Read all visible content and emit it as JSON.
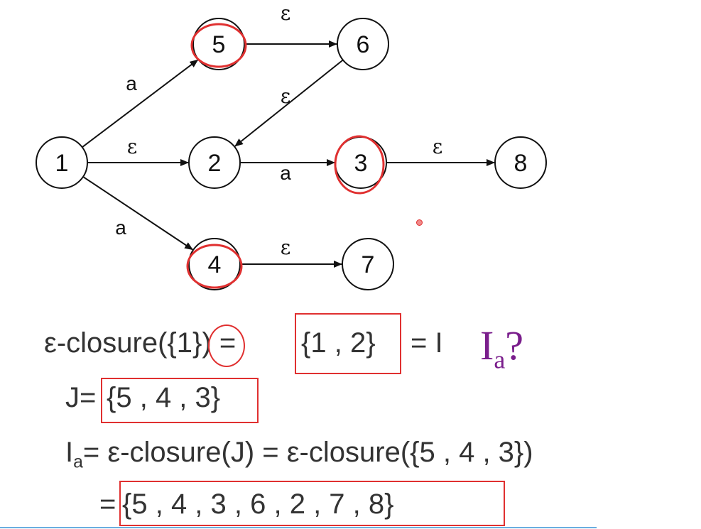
{
  "graph": {
    "nodes": [
      {
        "id": "1",
        "label": "1"
      },
      {
        "id": "2",
        "label": "2"
      },
      {
        "id": "3",
        "label": "3"
      },
      {
        "id": "4",
        "label": "4"
      },
      {
        "id": "5",
        "label": "5"
      },
      {
        "id": "6",
        "label": "6"
      },
      {
        "id": "7",
        "label": "7"
      },
      {
        "id": "8",
        "label": "8"
      }
    ],
    "edges": [
      {
        "from": "1",
        "to": "5",
        "label": "a"
      },
      {
        "from": "1",
        "to": "2",
        "label": "ε"
      },
      {
        "from": "1",
        "to": "4",
        "label": "a"
      },
      {
        "from": "5",
        "to": "6",
        "label": "ε"
      },
      {
        "from": "6",
        "to": "2",
        "label": "ε"
      },
      {
        "from": "2",
        "to": "3",
        "label": "a"
      },
      {
        "from": "3",
        "to": "8",
        "label": "ε"
      },
      {
        "from": "4",
        "to": "7",
        "label": "ε"
      }
    ],
    "highlighted_nodes": [
      "5",
      "3",
      "4"
    ],
    "highlight_color": "#e03030"
  },
  "equations": {
    "line1": {
      "lhs_prefix": "ε-closure(",
      "lhs_arg": "{1}",
      "lhs_suffix": ") =",
      "result": "{1 , 2}",
      "tail": "= I"
    },
    "question": {
      "base": "I",
      "sub": "a",
      "mark": "?"
    },
    "line2": {
      "lhs": "J=",
      "set": "{5 , 4 , 3}"
    },
    "line3": {
      "lhs_base": "I",
      "lhs_sub": "a",
      "rhs": "= ε-closure(J) = ε-closure({5 , 4 , 3})"
    },
    "line4": {
      "lhs": "=",
      "set": "{5 , 4 , 3 , 6 , 2 , 7 , 8}"
    }
  },
  "colors": {
    "highlight": "#e03030",
    "question": "#7a1e8c",
    "rule": "#6aaee0"
  }
}
